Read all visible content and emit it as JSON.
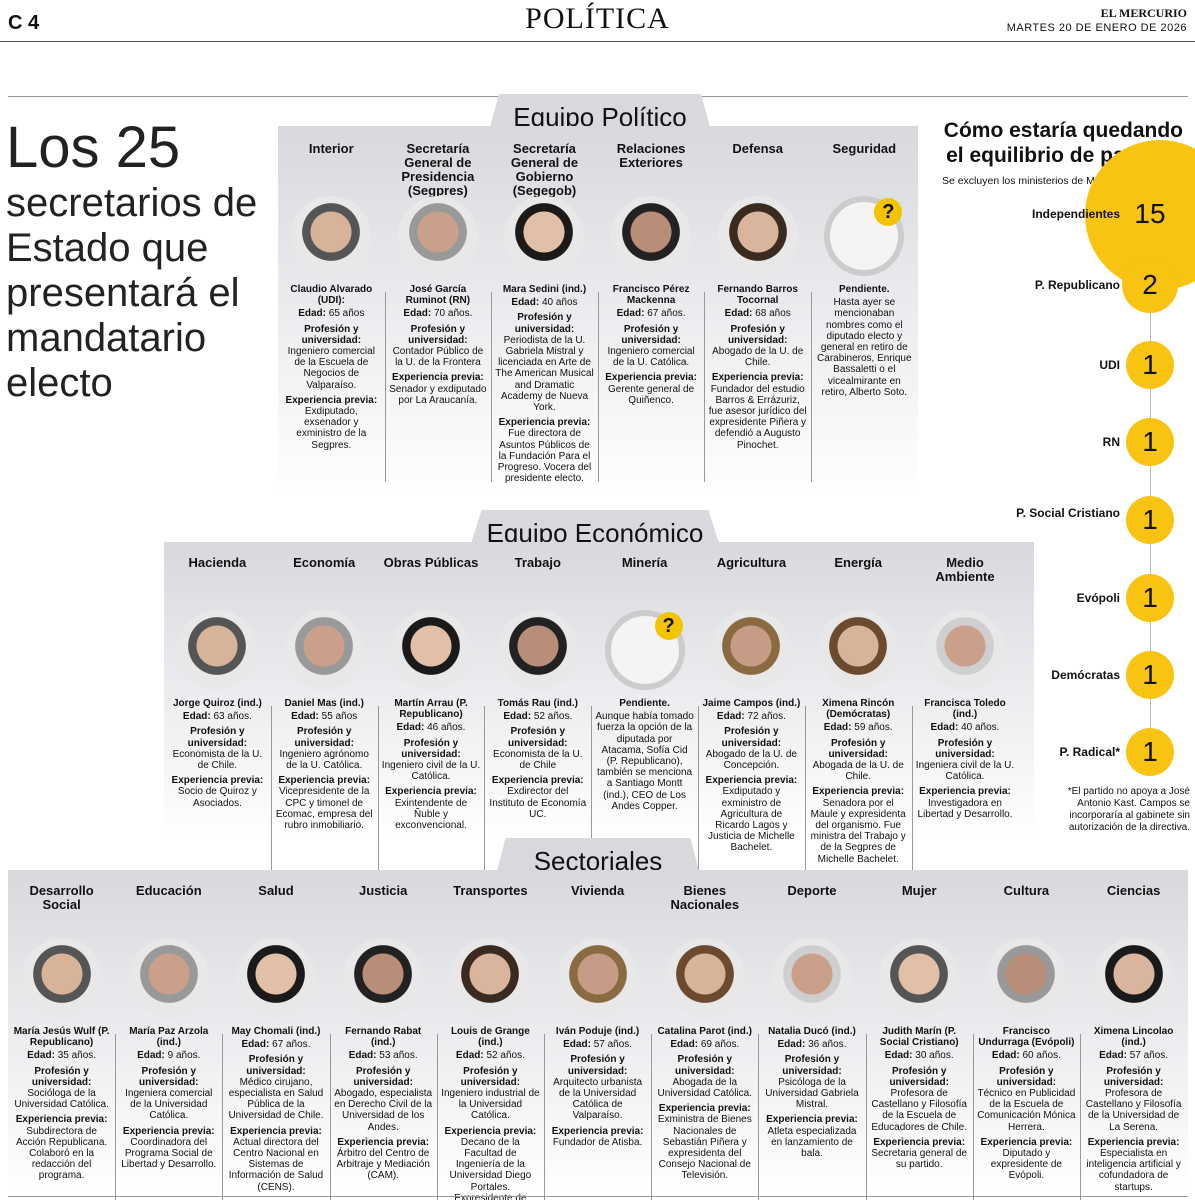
{
  "page": {
    "number": "C 4",
    "section": "POLÍTICA",
    "paper": "EL MERCURIO",
    "date": "MARTES 20 DE ENERO DE 2026"
  },
  "headline": {
    "big": "Los 25",
    "sub": "secretarios de Estado que presentará el mandatario electo"
  },
  "teams": {
    "politico": "Equipo Político",
    "economico": "Equipo Económico",
    "sectoriales": "Sectoriales"
  },
  "labels": {
    "edad": "Edad:",
    "prof": "Profesión y universidad:",
    "exp": "Experiencia previa:"
  },
  "politico": [
    {
      "role": "Interior",
      "name": "Claudio Alvarado (UDI):",
      "edad": "65 años",
      "prof": "Ingeniero comercial de la Escuela de Negocios de Valparaíso.",
      "exp": "Exdiputado, exsenador y exministro de la Segpres."
    },
    {
      "role": "Secretaría General de Presidencia (Segpres)",
      "name": "José García Ruminot (RN)",
      "edad": "70 años.",
      "prof": "Contador Público de la U. de la Frontera",
      "exp": "Senador y exdiputado por La Araucanía."
    },
    {
      "role": "Secretaría General de Gobierno (Segegob)",
      "name": "Mara Sedini (ind.)",
      "edad": "40 años",
      "prof": "Periodista de la U. Gabriela Mistral y licenciada en Arte de The American Musical and Dramatic Academy de Nueva York.",
      "exp": "Fue directora de Asuntos Públicos de la Fundación Para el Progreso. Vocera del presidente electo."
    },
    {
      "role": "Relaciones Exteriores",
      "name": "Francisco Pérez Mackenna",
      "edad": "67 años.",
      "prof": "Ingeniero comercial de la U. Católica.",
      "exp": "Gerente general de Quiñenco."
    },
    {
      "role": "Defensa",
      "name": "Fernando Barros Tocornal",
      "edad": "68 años",
      "prof": "Abogado de la U. de Chile.",
      "exp": "Fundador del estudio Barros & Errázuriz, fue asesor jurídico del expresidente Piñera y defendió a Augusto Pinochet."
    },
    {
      "role": "Seguridad",
      "name": "Pendiente.",
      "edad": "",
      "prof": "",
      "exp": "",
      "note": "Hasta ayer se mencionaban nombres como el diputado electo y general en retiro de Carabineros, Enrique Bassaletti o el vicealmirante en retiro, Alberto Soto."
    }
  ],
  "economico": [
    {
      "role": "Hacienda",
      "name": "Jorge Quiroz (ind.)",
      "edad": "63 años.",
      "prof": "Economista de la U. de Chile.",
      "exp": "Socio de Quiroz y Asociados."
    },
    {
      "role": "Economía",
      "name": "Daniel Mas (ind.)",
      "edad": "55 años",
      "prof": "Ingeniero agrónomo de la U. Católica.",
      "exp": "Vicepresidente de la CPC y timonel de Ecomac, empresa del rubro inmobiliario."
    },
    {
      "role": "Obras Públicas",
      "name": "Martín Arrau (P. Republicano)",
      "edad": "46 años.",
      "prof": "Ingeniero civil de la U. Católica.",
      "exp": "Exintendente de Ñuble y exconvencional."
    },
    {
      "role": "Trabajo",
      "name": "Tomás Rau (ind.)",
      "edad": "52 años.",
      "prof": "Economista de la U. de Chile",
      "exp": "Exdirector del Instituto de Economía UC."
    },
    {
      "role": "Minería",
      "name": "Pendiente.",
      "edad": "",
      "prof": "",
      "exp": "",
      "note": "Aunque había tomado fuerza la opción de la diputada por Atacama, Sofía Cid (P. Republicano), también se menciona a Santiago Montt (ind.), CEO de Los Andes Copper."
    },
    {
      "role": "Agricultura",
      "name": "Jaime Campos (ind.)",
      "edad": "72 años.",
      "prof": "Abogado de la U. de Concepción.",
      "exp": "Exdiputado y exministro de Agricultura de Ricardo Lagos y Justicia de Michelle Bachelet."
    },
    {
      "role": "Energía",
      "name": "Ximena Rincón (Demócratas)",
      "edad": "59 años.",
      "prof": "Abogada de la U. de Chile.",
      "exp": "Senadora por el Maule y expresidenta del organismo. Fue ministra del Trabajo y de la Segpres de Michelle Bachelet."
    },
    {
      "role": "Medio Ambiente",
      "name": "Francisca Toledo (ind.)",
      "edad": "40 años.",
      "prof": "Ingeniera civil de la U. Católica.",
      "exp": "Investigadora en Libertad y Desarrollo."
    }
  ],
  "sectoriales": [
    {
      "role": "Desarrollo Social",
      "name": "María Jesús Wulf (P. Republicano)",
      "edad": "35 años.",
      "prof": "Socióloga de la Universidad Católica.",
      "exp": "Subdirectora de Acción Republicana. Colaboró en la redacción del programa."
    },
    {
      "role": "Educación",
      "name": "María Paz Arzola (ind.)",
      "edad": "9 años.",
      "prof": "Ingeniera comercial de la Universidad Católica.",
      "exp": "Coordinadora del Programa Social de Libertad y Desarrollo."
    },
    {
      "role": "Salud",
      "name": "May Chomali (ind.)",
      "edad": "67 años.",
      "prof": "Médico cirujano, especialista en Salud Pública de la Universidad de Chile.",
      "exp": "Actual directora del Centro Nacional en Sistemas de Información de Salud (CENS)."
    },
    {
      "role": "Justicia",
      "name": "Fernando Rabat (ind.)",
      "edad": "53 años.",
      "prof": "Abogado, especialista en Derecho Civil de la Universidad de los Andes.",
      "exp": "Árbitro del Centro de Arbitraje y Mediación (CAM)."
    },
    {
      "role": "Transportes",
      "name": "Louis de Grange (ind.)",
      "edad": "52 años.",
      "prof": "Ingeniero industrial de la Universidad Católica.",
      "exp": "Decano de la Facultad de Ingeniería de la Universidad Diego Portales. Expresidente de Metro."
    },
    {
      "role": "Vivienda",
      "name": "Iván Poduje (ind.)",
      "edad": "57 años.",
      "prof": "Arquitecto urbanista de la Universidad Católica de Valparaíso.",
      "exp": "Fundador de Atisba."
    },
    {
      "role": "Bienes Nacionales",
      "name": "Catalina Parot (ind.)",
      "edad": "69 años.",
      "prof": "Abogada de la Universidad Católica.",
      "exp": "Exministra de Bienes Nacionales de Sebastián Piñera y expresidenta del Consejo Nacional de Televisión."
    },
    {
      "role": "Deporte",
      "name": "Natalia Ducó (ind.)",
      "edad": "36 años.",
      "prof": "Psicóloga de la Universidad Gabriela Mistral.",
      "exp": "Atleta especializada en lanzamiento de bala."
    },
    {
      "role": "Mujer",
      "name": "Judith Marín (P. Social Cristiano)",
      "edad": "30 años.",
      "prof": "Profesora de Castellano y Filosofía de la Escuela de Educadores de Chile.",
      "exp": "Secretaria general de su partido."
    },
    {
      "role": "Cultura",
      "name": "Francisco Undurraga (Evópoli)",
      "edad": "60 años.",
      "prof": "Técnico en Publicidad de la Escuela de Comunicación Mónica Herrera.",
      "exp": "Diputado y expresidente de Evópoli."
    },
    {
      "role": "Ciencias",
      "name": "Ximena Lincolao (ind.)",
      "edad": "57 años.",
      "prof": "Profesora de Castellano y Filosofía de la Universidad de La Serena.",
      "exp": "Especialista en inteligencia artificial y cofundadora de startups."
    }
  ],
  "balance": {
    "title": "Cómo estaría quedando el equilibrio de partidos",
    "sub": "Se excluyen los ministerios de Minería y Seguridad.",
    "accent": "#f8c311",
    "parties": [
      {
        "name": "Independientes",
        "count": "15"
      },
      {
        "name": "P. Republicano",
        "count": "2"
      },
      {
        "name": "UDI",
        "count": "1"
      },
      {
        "name": "RN",
        "count": "1"
      },
      {
        "name": "P. Social Cristiano",
        "count": "1"
      },
      {
        "name": "Evópoli",
        "count": "1"
      },
      {
        "name": "Demócratas",
        "count": "1"
      },
      {
        "name": "P. Radical*",
        "count": "1"
      }
    ],
    "footnote": "*El partido no apoya a José Antonio Kast. Campos se incorporaría al gabinete sin autorización de la directiva."
  }
}
